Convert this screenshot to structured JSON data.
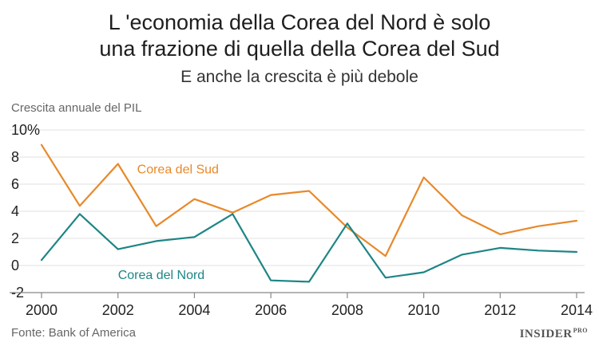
{
  "chart_data": {
    "type": "line",
    "title_line1": "L 'economia della Corea del Nord è solo",
    "title_line2": "una frazione di quella della Corea del Sud",
    "subtitle": "E anche la crescita è più debole",
    "ylabel": "Crescita annuale del PIL",
    "xlabel": "",
    "source": "Fonte: Bank of America",
    "brand": "INSIDER",
    "brand_suffix": "PRO",
    "x": [
      2000,
      2001,
      2002,
      2003,
      2004,
      2005,
      2006,
      2007,
      2008,
      2009,
      2010,
      2011,
      2012,
      2013,
      2014
    ],
    "x_ticks": [
      "2000",
      "2002",
      "2004",
      "2006",
      "2008",
      "2010",
      "2012",
      "2014"
    ],
    "y_ticks": [
      "10%",
      "8",
      "6",
      "4",
      "2",
      "0",
      "-2"
    ],
    "y_tick_values": [
      10,
      8,
      6,
      4,
      2,
      0,
      -2
    ],
    "xlim": [
      2000,
      2014
    ],
    "ylim": [
      -2,
      10
    ],
    "grid": true,
    "series": [
      {
        "name": "Corea del Sud",
        "color": "#e8892a",
        "values": [
          8.9,
          4.4,
          7.5,
          2.9,
          4.9,
          3.9,
          5.2,
          5.5,
          2.8,
          0.7,
          6.5,
          3.7,
          2.3,
          2.9,
          3.3
        ]
      },
      {
        "name": "Corea del Nord",
        "color": "#1e8585",
        "values": [
          0.4,
          3.8,
          1.2,
          1.8,
          2.1,
          3.8,
          -1.1,
          -1.2,
          3.1,
          -0.9,
          -0.5,
          0.8,
          1.3,
          1.1,
          1.0
        ]
      }
    ],
    "axis_color": "#888888",
    "grid_color": "#e1e1e1"
  }
}
